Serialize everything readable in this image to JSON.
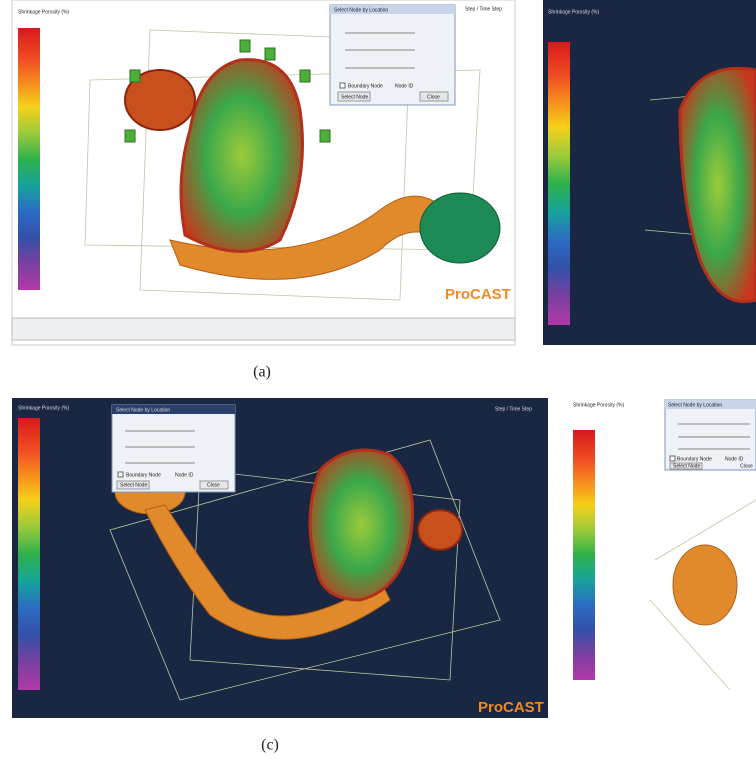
{
  "panels": [
    {
      "legend_title": "Shrinkage Porosity (%)",
      "dialog_title": "Select Node by Location",
      "checkbox": "Boundary Node",
      "node_id": "Node ID",
      "buttons": [
        "Select Node",
        "Close"
      ],
      "step": "Step / Time Step",
      "brand": "ProCAST",
      "caption": "(a)"
    },
    {
      "legend_title": "Shrinkage Porosity (%)"
    },
    {
      "legend_title": "Shrinkage Porosity (%)",
      "dialog_title": "Select Node by Location",
      "checkbox": "Boundary Node",
      "node_id": "Node ID",
      "buttons": [
        "Select Node",
        "Close"
      ],
      "step": "Step / Time Step",
      "brand": "ProCAST",
      "caption": "(c)"
    },
    {
      "legend_title": "Shrinkage Porosity (%)",
      "dialog_title": "Select Node by Location",
      "checkbox": "Boundary Node",
      "node_id": "Node ID",
      "buttons": [
        "Select Node",
        "Close"
      ]
    }
  ]
}
